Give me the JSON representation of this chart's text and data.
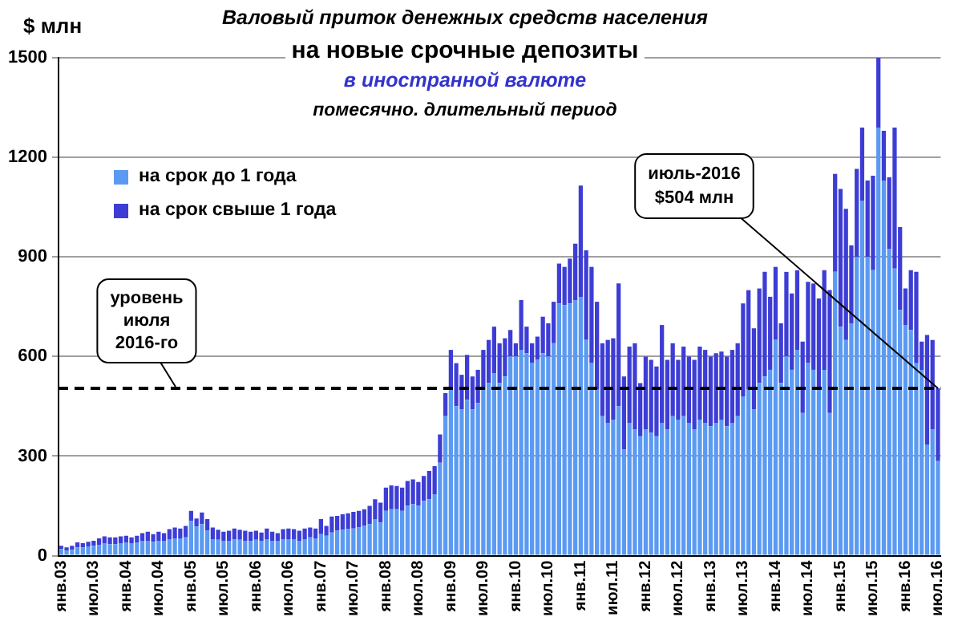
{
  "chart_data": {
    "type": "bar",
    "stacked": true,
    "title": "Валовый  приток денежных средств населения",
    "subtitle": "на новые срочные депозиты\nв иностранной валюте\nпомесячно. длительный период",
    "ylabel": "$ млн",
    "categories": [
      "янв.03",
      null,
      null,
      null,
      null,
      null,
      "июл.03",
      null,
      null,
      null,
      null,
      null,
      "янв.04",
      null,
      null,
      null,
      null,
      null,
      "июл.04",
      null,
      null,
      null,
      null,
      null,
      "янв.05",
      null,
      null,
      null,
      null,
      null,
      "июл.05",
      null,
      null,
      null,
      null,
      null,
      "янв.06",
      null,
      null,
      null,
      null,
      null,
      "июл.06",
      null,
      null,
      null,
      null,
      null,
      "янв.07",
      null,
      null,
      null,
      null,
      null,
      "июл.07",
      null,
      null,
      null,
      null,
      null,
      "янв.08",
      null,
      null,
      null,
      null,
      null,
      "июл.08",
      null,
      null,
      null,
      null,
      null,
      "янв.09",
      null,
      null,
      null,
      null,
      null,
      "июл.09",
      null,
      null,
      null,
      null,
      null,
      "янв.10",
      null,
      null,
      null,
      null,
      null,
      "июл.10",
      null,
      null,
      null,
      null,
      null,
      "янв.11",
      null,
      null,
      null,
      null,
      null,
      "июл.11",
      null,
      null,
      null,
      null,
      null,
      "янв.12",
      null,
      null,
      null,
      null,
      null,
      "июл.12",
      null,
      null,
      null,
      null,
      null,
      "янв.13",
      null,
      null,
      null,
      null,
      null,
      "июл.13",
      null,
      null,
      null,
      null,
      null,
      "янв.14",
      null,
      null,
      null,
      null,
      null,
      "июл.14",
      null,
      null,
      null,
      null,
      null,
      "янв.15",
      null,
      null,
      null,
      null,
      null,
      "июл.15",
      null,
      null,
      null,
      null,
      null,
      "янв.16",
      null,
      null,
      null,
      null,
      null,
      "июл.16"
    ],
    "series": [
      {
        "name": "на срок до 1 года",
        "color": "#5b9af2",
        "values": [
          20,
          15,
          18,
          25,
          25,
          28,
          30,
          32,
          38,
          35,
          35,
          38,
          40,
          38,
          40,
          45,
          45,
          42,
          45,
          45,
          50,
          52,
          52,
          55,
          105,
          88,
          95,
          75,
          50,
          48,
          45,
          45,
          50,
          48,
          45,
          45,
          48,
          45,
          50,
          45,
          45,
          50,
          50,
          50,
          45,
          50,
          55,
          52,
          65,
          60,
          70,
          75,
          78,
          80,
          82,
          85,
          90,
          95,
          110,
          100,
          135,
          140,
          140,
          135,
          150,
          155,
          150,
          165,
          170,
          185,
          280,
          420,
          500,
          450,
          440,
          470,
          440,
          460,
          500,
          520,
          550,
          520,
          540,
          600,
          600,
          620,
          610,
          580,
          590,
          610,
          600,
          640,
          760,
          755,
          760,
          770,
          780,
          650,
          580,
          500,
          420,
          400,
          410,
          450,
          320,
          400,
          380,
          360,
          380,
          370,
          360,
          400,
          380,
          420,
          410,
          420,
          400,
          380,
          410,
          400,
          390,
          400,
          410,
          390,
          400,
          420,
          480,
          500,
          440,
          520,
          540,
          560,
          650,
          520,
          600,
          560,
          620,
          430,
          580,
          560,
          500,
          560,
          430,
          855,
          690,
          650,
          700,
          900,
          1070,
          900,
          860,
          1290,
          1130,
          925,
          865,
          740,
          695,
          680,
          580,
          560,
          335,
          380,
          285
        ]
      },
      {
        "name": "на срок свыше 1 года",
        "color": "#3d3dd6",
        "values": [
          10,
          10,
          12,
          15,
          13,
          14,
          15,
          20,
          20,
          20,
          20,
          20,
          20,
          17,
          20,
          23,
          27,
          23,
          27,
          23,
          30,
          33,
          30,
          35,
          30,
          24,
          35,
          35,
          35,
          30,
          27,
          30,
          32,
          30,
          30,
          27,
          27,
          25,
          32,
          27,
          23,
          30,
          32,
          30,
          30,
          32,
          30,
          30,
          45,
          30,
          48,
          45,
          47,
          48,
          50,
          50,
          50,
          55,
          60,
          60,
          70,
          72,
          70,
          70,
          75,
          75,
          72,
          75,
          85,
          85,
          85,
          70,
          120,
          130,
          105,
          135,
          100,
          100,
          120,
          130,
          140,
          120,
          115,
          80,
          40,
          150,
          80,
          60,
          70,
          110,
          100,
          125,
          120,
          115,
          135,
          170,
          335,
          270,
          290,
          265,
          220,
          250,
          245,
          370,
          220,
          230,
          260,
          160,
          220,
          220,
          210,
          295,
          210,
          220,
          180,
          210,
          200,
          210,
          220,
          220,
          210,
          210,
          205,
          210,
          220,
          220,
          280,
          300,
          245,
          285,
          315,
          220,
          220,
          180,
          255,
          230,
          240,
          215,
          245,
          260,
          275,
          300,
          370,
          295,
          415,
          395,
          235,
          265,
          220,
          230,
          285,
          210,
          150,
          215,
          425,
          250,
          110,
          180,
          275,
          85,
          330,
          270,
          219
        ]
      }
    ],
    "ylim": [
      0,
      1500
    ],
    "yticks": [
      0,
      300,
      600,
      900,
      1200,
      1500
    ],
    "grid": "y",
    "legend": "top left",
    "ref_lines": [
      {
        "axis": "y",
        "value": 504,
        "label": "уровень июля 2016-го",
        "line_style": "dashed",
        "color": "#000000"
      }
    ],
    "annotations": [
      {
        "text": "июль-2016 $504 млн",
        "x": "июл.16",
        "y": 504
      }
    ]
  }
}
